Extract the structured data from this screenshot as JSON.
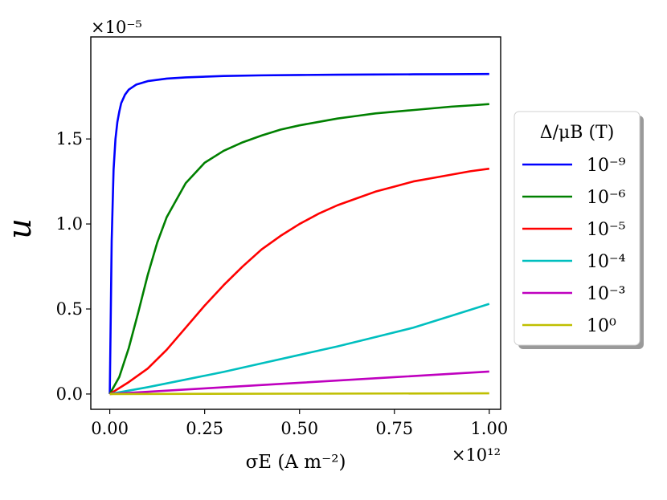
{
  "chart_data": {
    "type": "line",
    "xlabel": "σE (A m⁻²)",
    "ylabel": "u",
    "x_multiplier": "×10¹²",
    "y_multiplier": "×10⁻⁵",
    "xlim": [
      -0.05,
      1.03
    ],
    "ylim": [
      -0.09,
      2.1
    ],
    "xticks": [
      0.0,
      0.25,
      0.5,
      0.75,
      1.0
    ],
    "xtick_labels": [
      "0.00",
      "0.25",
      "0.50",
      "0.75",
      "1.00"
    ],
    "yticks": [
      0.0,
      0.5,
      1.0,
      1.5
    ],
    "ytick_labels": [
      "0.0",
      "0.5",
      "1.0",
      "1.5"
    ],
    "grid": false,
    "legend_title": "Δ/μB (T)",
    "legend_position": "outside-right",
    "series": [
      {
        "name": "10⁻⁹",
        "color": "#0000ff",
        "x": [
          0,
          0.005,
          0.01,
          0.015,
          0.02,
          0.025,
          0.03,
          0.04,
          0.05,
          0.07,
          0.1,
          0.15,
          0.2,
          0.3,
          0.4,
          0.5,
          0.6,
          0.7,
          0.8,
          0.9,
          1.0
        ],
        "y": [
          0,
          0.9,
          1.32,
          1.5,
          1.6,
          1.66,
          1.71,
          1.76,
          1.79,
          1.82,
          1.84,
          1.855,
          1.862,
          1.87,
          1.874,
          1.876,
          1.878,
          1.879,
          1.88,
          1.881,
          1.882
        ]
      },
      {
        "name": "10⁻⁶",
        "color": "#008000",
        "x": [
          0,
          0.025,
          0.05,
          0.075,
          0.1,
          0.125,
          0.15,
          0.2,
          0.25,
          0.3,
          0.35,
          0.4,
          0.45,
          0.5,
          0.55,
          0.6,
          0.65,
          0.7,
          0.75,
          0.8,
          0.85,
          0.9,
          0.95,
          1.0
        ],
        "y": [
          0,
          0.1,
          0.27,
          0.48,
          0.7,
          0.89,
          1.04,
          1.24,
          1.36,
          1.43,
          1.48,
          1.52,
          1.555,
          1.58,
          1.6,
          1.62,
          1.635,
          1.65,
          1.66,
          1.67,
          1.68,
          1.69,
          1.697,
          1.705
        ]
      },
      {
        "name": "10⁻⁵",
        "color": "#ff0000",
        "x": [
          0,
          0.05,
          0.1,
          0.15,
          0.2,
          0.25,
          0.3,
          0.35,
          0.4,
          0.45,
          0.5,
          0.55,
          0.6,
          0.65,
          0.7,
          0.75,
          0.8,
          0.85,
          0.9,
          0.95,
          1.0
        ],
        "y": [
          0,
          0.07,
          0.15,
          0.26,
          0.39,
          0.52,
          0.64,
          0.75,
          0.85,
          0.93,
          1.0,
          1.06,
          1.11,
          1.15,
          1.19,
          1.22,
          1.25,
          1.27,
          1.29,
          1.31,
          1.325
        ]
      },
      {
        "name": "10⁻⁴",
        "color": "#00bfbf",
        "x": [
          0,
          0.1,
          0.2,
          0.3,
          0.4,
          0.5,
          0.6,
          0.7,
          0.8,
          0.9,
          1.0
        ],
        "y": [
          0,
          0.04,
          0.085,
          0.13,
          0.18,
          0.23,
          0.28,
          0.335,
          0.39,
          0.46,
          0.53
        ]
      },
      {
        "name": "10⁻³",
        "color": "#bf00bf",
        "x": [
          0,
          0.25,
          0.5,
          0.75,
          1.0
        ],
        "y": [
          0,
          0.033,
          0.066,
          0.099,
          0.132
        ]
      },
      {
        "name": "10⁰",
        "color": "#bfbf00",
        "x": [
          0,
          0.5,
          1.0
        ],
        "y": [
          0,
          0.002,
          0.004
        ]
      }
    ]
  }
}
